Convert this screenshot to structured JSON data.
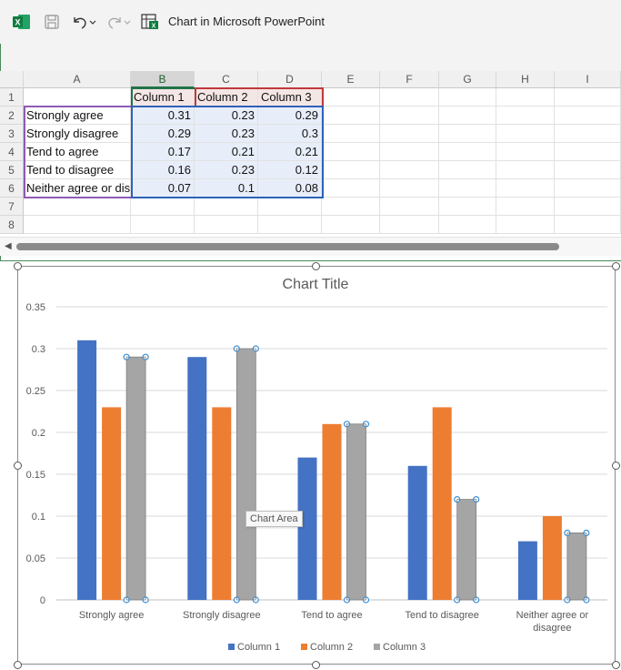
{
  "titlebar": {
    "app_title": "Chart in Microsoft PowerPoint"
  },
  "colors": {
    "excel_green": "#217346",
    "series1": "#4472c4",
    "series2": "#ed7d31",
    "series3": "#a5a5a5"
  },
  "sheet": {
    "columns": [
      "A",
      "B",
      "C",
      "D",
      "E",
      "F",
      "G",
      "H",
      "I"
    ],
    "rows": [
      "1",
      "2",
      "3",
      "4",
      "5",
      "6",
      "7",
      "8"
    ],
    "header_row": [
      "",
      "Column 1",
      "Column 2",
      "Column 3"
    ],
    "data_rows": [
      [
        "Strongly agree",
        "0.31",
        "0.23",
        "0.29"
      ],
      [
        "Strongly disagree",
        "0.29",
        "0.23",
        "0.3"
      ],
      [
        "Tend to agree",
        "0.17",
        "0.21",
        "0.21"
      ],
      [
        "Tend to disagree",
        "0.16",
        "0.23",
        "0.12"
      ],
      [
        "Neither agree or disagree",
        "0.07",
        "0.1",
        "0.08"
      ]
    ]
  },
  "tooltip": "Chart Area",
  "chart_data": {
    "type": "bar",
    "title": "Chart Title",
    "categories": [
      "Strongly agree",
      "Strongly disagree",
      "Tend to agree",
      "Tend to disagree",
      "Neither agree or disagree"
    ],
    "series": [
      {
        "name": "Column 1",
        "values": [
          0.31,
          0.29,
          0.17,
          0.16,
          0.07
        ],
        "color": "#4472c4"
      },
      {
        "name": "Column 2",
        "values": [
          0.23,
          0.23,
          0.21,
          0.23,
          0.1
        ],
        "color": "#ed7d31"
      },
      {
        "name": "Column 3",
        "values": [
          0.29,
          0.3,
          0.21,
          0.12,
          0.08
        ],
        "color": "#a5a5a5"
      }
    ],
    "ylim": [
      0,
      0.35
    ],
    "yticks": [
      "0",
      "0.05",
      "0.1",
      "0.15",
      "0.2",
      "0.25",
      "0.3",
      "0.35"
    ],
    "grid": true,
    "legend": "bottom",
    "xlabel": "",
    "ylabel": ""
  }
}
